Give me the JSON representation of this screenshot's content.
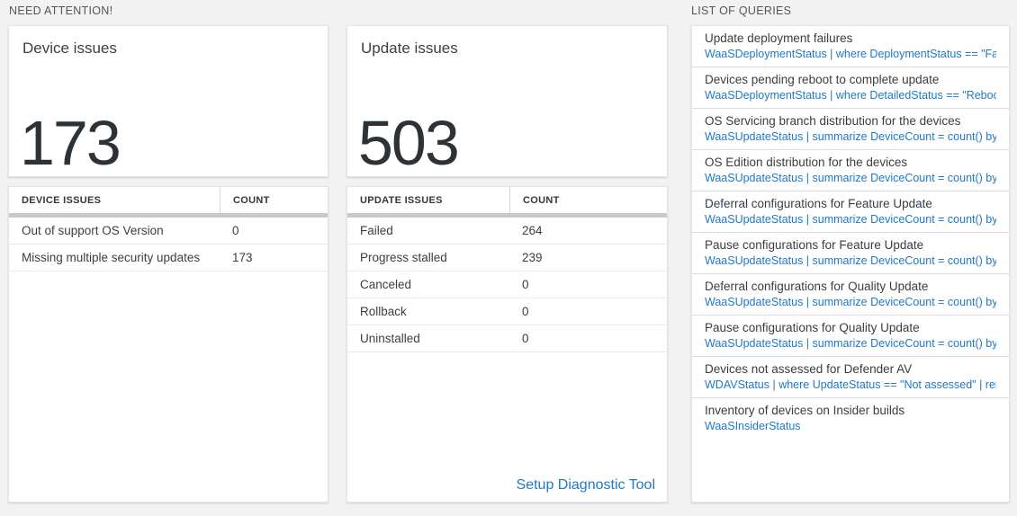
{
  "accent_blue": "#1e79c6",
  "need_attention": {
    "header": "NEED ATTENTION!",
    "device_issues": {
      "title": "Device issues",
      "total": "173",
      "table": {
        "col1": "DEVICE ISSUES",
        "col2": "COUNT",
        "rows": [
          {
            "label": "Out of support OS Version",
            "count": "0"
          },
          {
            "label": "Missing multiple security updates",
            "count": "173"
          }
        ]
      }
    },
    "update_issues": {
      "title": "Update issues",
      "total": "503",
      "table": {
        "col1": "UPDATE ISSUES",
        "col2": "COUNT",
        "rows": [
          {
            "label": "Failed",
            "count": "264"
          },
          {
            "label": "Progress stalled",
            "count": "239"
          },
          {
            "label": "Canceled",
            "count": "0"
          },
          {
            "label": "Rollback",
            "count": "0"
          },
          {
            "label": "Uninstalled",
            "count": "0"
          }
        ]
      },
      "footer_link": "Setup Diagnostic Tool"
    }
  },
  "queries": {
    "header": "LIST OF QUERIES",
    "items": [
      {
        "title": "Update deployment failures",
        "query": "WaaSDeploymentStatus | where DeploymentStatus == \"Failed\" |..."
      },
      {
        "title": "Devices pending reboot to complete update",
        "query": "WaaSDeploymentStatus | where DetailedStatus == \"Reboot pend..."
      },
      {
        "title": "OS Servicing branch distribution for the devices",
        "query": "WaaSUpdateStatus | summarize DeviceCount = count() by OSSer..."
      },
      {
        "title": "OS Edition distribution for the devices",
        "query": "WaaSUpdateStatus | summarize DeviceCount = count() by OSEdit..."
      },
      {
        "title": "Deferral configurations for Feature Update",
        "query": "WaaSUpdateStatus | summarize DeviceCount = count() by Featur..."
      },
      {
        "title": "Pause configurations for Feature Update",
        "query": "WaaSUpdateStatus | summarize DeviceCount = count() by Featur..."
      },
      {
        "title": "Deferral configurations for Quality Update",
        "query": "WaaSUpdateStatus | summarize DeviceCount = count() by Qualit..."
      },
      {
        "title": "Pause configurations for Quality Update",
        "query": "WaaSUpdateStatus | summarize DeviceCount = count() by Qualit..."
      },
      {
        "title": "Devices not assessed for Defender AV",
        "query": "WDAVStatus | where UpdateStatus == \"Not assessed\" | render ta..."
      },
      {
        "title": "Inventory of devices on Insider builds",
        "query": "WaaSInsiderStatus"
      }
    ]
  }
}
